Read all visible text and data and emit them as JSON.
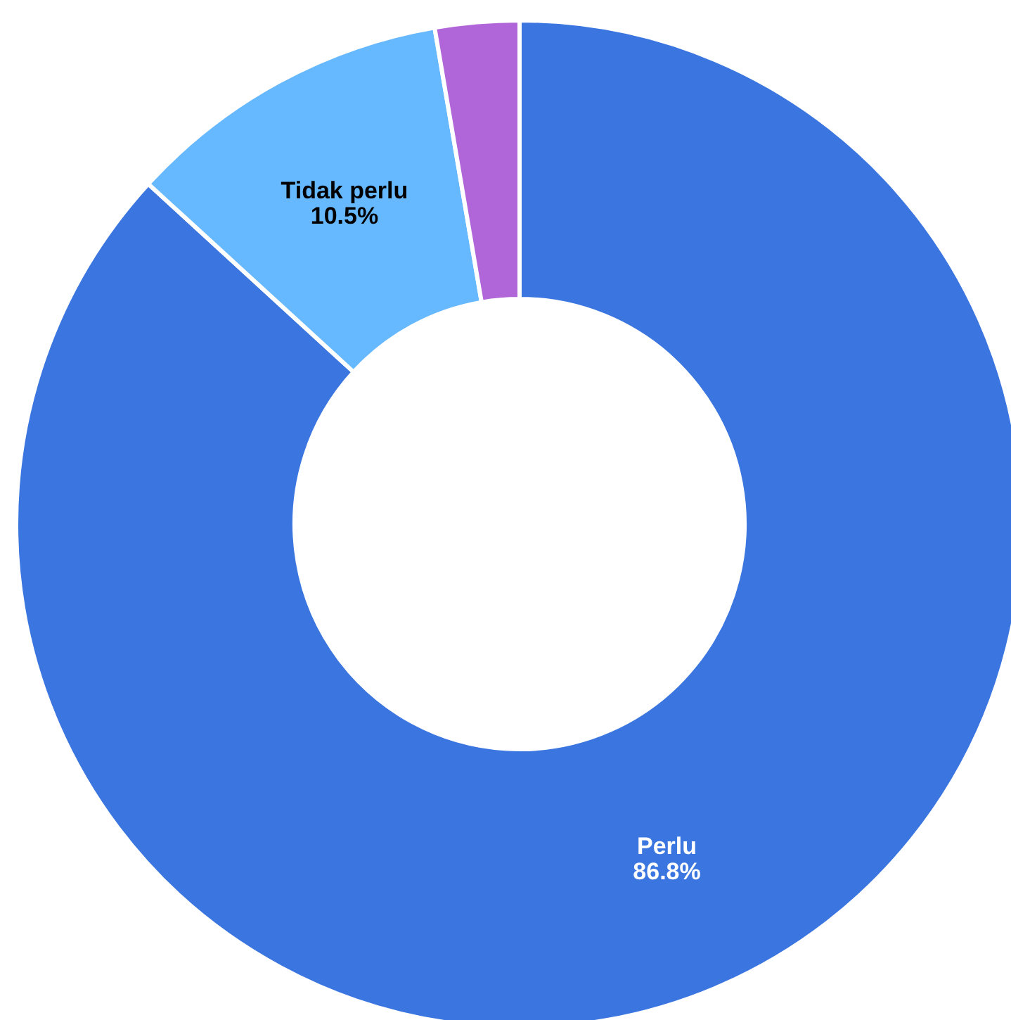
{
  "chart_data": {
    "type": "donut",
    "categories": [
      "Perlu",
      "Tidak perlu",
      null
    ],
    "values": [
      86.8,
      10.5,
      2.7
    ],
    "colors": [
      "#3a75e0",
      "#66b8ff",
      "#b066d9"
    ],
    "value_labels": [
      "86.8%",
      "10.5%",
      null
    ]
  }
}
